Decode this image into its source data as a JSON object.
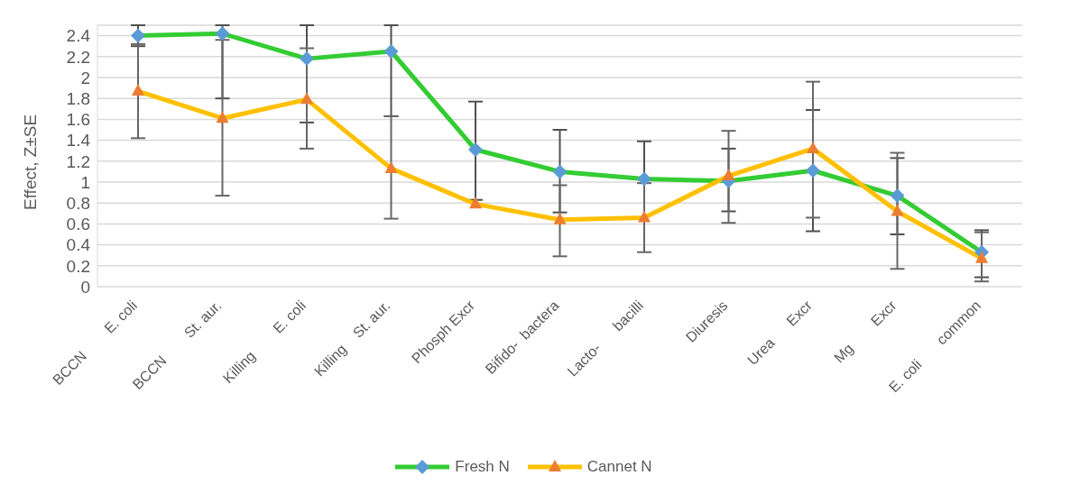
{
  "chart_data": {
    "type": "line",
    "ylabel": "Effect, Z±SE",
    "categories": [
      "BCCN        E. coli",
      "BCCN        St. aur.",
      "Killing        E. coli",
      "Killing    St. aur.",
      "Phosph Excr",
      "Bifido-  bactera",
      "Lacto-      bacilli",
      "Diuresis",
      "Urea      Excr",
      "Mg        Excr",
      "E. coli       common"
    ],
    "series": [
      {
        "name": "Fresh N",
        "color": "#33cc33",
        "marker": "diamond",
        "colors": [
          "#5b9bd5",
          "#5b9bd5",
          "#5b9bd5",
          "#5b9bd5",
          "#5b9bd5",
          "#5b9bd5",
          "#5b9bd5",
          "#5b9bd5",
          "#5b9bd5",
          "#5b9bd5",
          "#5b9bd5"
        ],
        "values": [
          2.4,
          2.42,
          2.18,
          2.25,
          1.31,
          1.1,
          1.03,
          1.01,
          1.11,
          0.87,
          0.33
        ],
        "errors": [
          [
            2.3,
            2.5
          ],
          [
            1.8,
            2.5
          ],
          [
            1.57,
            2.5
          ],
          [
            1.63,
            2.5
          ],
          [
            0.83,
            1.77
          ],
          [
            0.71,
            1.5
          ],
          [
            1.03,
            1.39
          ],
          [
            0.72,
            1.32
          ],
          [
            0.53,
            1.69
          ],
          [
            0.5,
            1.23
          ],
          [
            0.09,
            0.54
          ]
        ]
      },
      {
        "name": "Cannet N",
        "color": "#ffc000",
        "marker": "triangle",
        "colors": [
          "#ed7d31",
          "#ed7d31",
          "#ed7d31",
          "#ed7d31",
          "#ed7d31",
          "#ed7d31",
          "#ed7d31",
          "#ed7d31",
          "#ed7d31",
          "#ed7d31",
          "#ed7d31"
        ],
        "values": [
          1.87,
          1.61,
          1.79,
          1.13,
          0.79,
          0.64,
          0.66,
          1.06,
          1.32,
          0.72,
          0.27
        ],
        "errors": [
          [
            1.42,
            2.32
          ],
          [
            0.87,
            2.36
          ],
          [
            1.32,
            2.28
          ],
          [
            0.65,
            1.63
          ],
          null,
          [
            0.29,
            0.97
          ],
          [
            0.33,
            0.99
          ],
          [
            0.61,
            1.49
          ],
          [
            0.66,
            1.96
          ],
          [
            0.17,
            1.28
          ],
          [
            0.05,
            0.52
          ]
        ]
      }
    ],
    "ylim": [
      0,
      2.5
    ],
    "yticks": [
      0,
      0.2,
      0.4,
      0.6,
      0.8,
      1,
      1.2,
      1.4,
      1.6,
      1.8,
      2,
      2.2,
      2.4
    ],
    "grid": "y",
    "legend": "bottom"
  }
}
